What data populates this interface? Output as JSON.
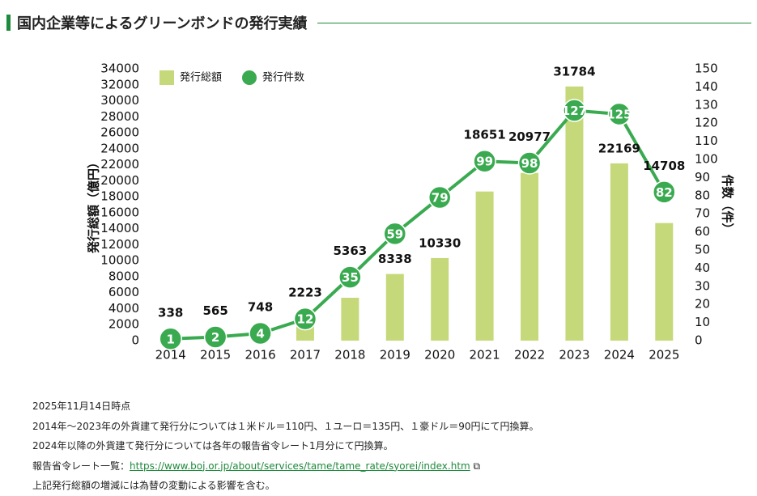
{
  "chart_data": {
    "type": "bar",
    "title": "国内企業等によるグリーンボンドの発行実績",
    "ylabel": "発行総額（億円）",
    "y2label": "件数（件）",
    "categories": [
      "2014",
      "2015",
      "2016",
      "2017",
      "2018",
      "2019",
      "2020",
      "2021",
      "2022",
      "2023",
      "2024",
      "2025"
    ],
    "series": [
      {
        "name": "発行総額",
        "type": "bar",
        "color": "#c5d97a",
        "values": [
          338,
          565,
          748,
          2223,
          5363,
          8338,
          10330,
          18651,
          20977,
          31784,
          22169,
          14708
        ]
      },
      {
        "name": "発行件数",
        "type": "line",
        "axis": "y2",
        "color": "#3aaa50",
        "values": [
          1,
          2,
          4,
          12,
          35,
          59,
          79,
          99,
          98,
          127,
          125,
          82
        ]
      }
    ],
    "ylim": [
      0,
      34000
    ],
    "yticks": [
      0,
      2000,
      4000,
      6000,
      8000,
      10000,
      12000,
      14000,
      16000,
      18000,
      20000,
      22000,
      24000,
      26000,
      28000,
      30000,
      32000,
      34000
    ],
    "y2lim": [
      0,
      150
    ],
    "y2ticks": [
      0,
      10,
      20,
      30,
      40,
      50,
      60,
      70,
      80,
      90,
      100,
      110,
      120,
      130,
      140,
      150
    ],
    "grid": false,
    "legend": "top-left"
  },
  "notes": [
    "2025年11月14日時点",
    "2014年～2023年の外貨建て発行分については１米ドル＝110円、１ユーロ＝135円、１豪ドル＝90円にて円換算。",
    "2024年以降の外貨建て発行分については各年の報告省令レート1月分にて円換算。",
    {
      "text": "報告省令レート一覧：",
      "link": "https://www.boj.or.jp/about/services/tame/tame_rate/syorei/index.htm"
    },
    "上記発行総額の増減には為替の変動による影響を含む。"
  ]
}
